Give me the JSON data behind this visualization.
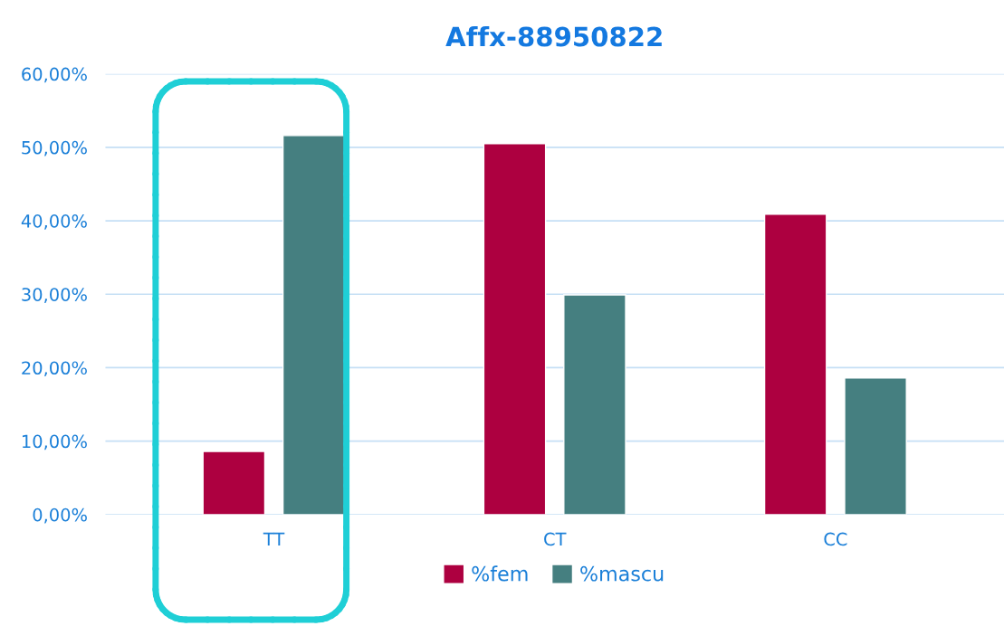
{
  "chart_data": {
    "type": "bar",
    "title": "Affx-88950822",
    "categories": [
      "TT",
      "CT",
      "CC"
    ],
    "series": [
      {
        "name": "%fem",
        "color": "#ad0040",
        "values": [
          8.6,
          50.5,
          40.9
        ]
      },
      {
        "name": "%mascu",
        "color": "#457f80",
        "values": [
          51.6,
          29.9,
          18.6
        ]
      }
    ],
    "ylim": [
      0,
      60
    ],
    "yticks": [
      {
        "value": 0,
        "label": "0,00%"
      },
      {
        "value": 10,
        "label": "10,00%"
      },
      {
        "value": 20,
        "label": "20,00%"
      },
      {
        "value": 30,
        "label": "30,00%"
      },
      {
        "value": 40,
        "label": "40,00%"
      },
      {
        "value": 50,
        "label": "50,00%"
      },
      {
        "value": 60,
        "label": "60,00%"
      }
    ],
    "grid": "y",
    "legend": "bottom"
  }
}
